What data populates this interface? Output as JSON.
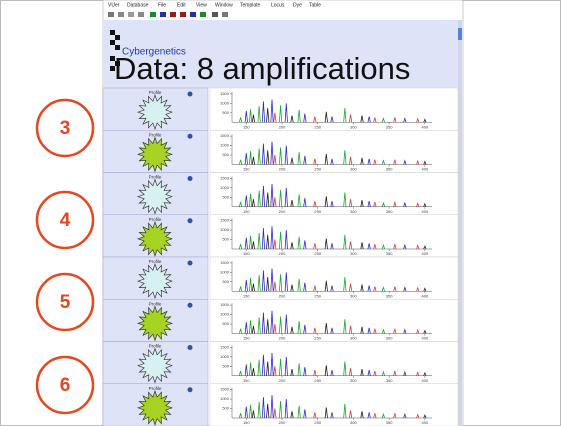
{
  "menu": [
    "VUer",
    "Database",
    "File",
    "Edit",
    "View",
    "Window",
    "Template",
    "Locus",
    "Dye",
    "Table"
  ],
  "header": {
    "logo": "Cybergenetics",
    "title": "Data: 8 amplifications"
  },
  "annotations": [
    "3",
    "4",
    "5",
    "6"
  ],
  "rows": [
    {
      "label": "Profile",
      "state": "pale"
    },
    {
      "label": "Profile",
      "state": "green"
    },
    {
      "label": "Profile",
      "state": "pale"
    },
    {
      "label": "Profile",
      "state": "green"
    },
    {
      "label": "Profile",
      "state": "pale"
    },
    {
      "label": "Profile",
      "state": "green"
    },
    {
      "label": "Profile",
      "state": "pale"
    },
    {
      "label": "Profile",
      "state": "green"
    }
  ],
  "trace_axis": {
    "xlim": [
      130,
      410
    ],
    "xticks": [
      150,
      200,
      250,
      300,
      350,
      400
    ],
    "ylim": [
      0,
      1600
    ],
    "yticks": [
      500,
      1000,
      1500
    ]
  },
  "dye_colors": {
    "blue": "#2b2bd6",
    "green": "#1fa82a",
    "black": "#222222",
    "red": "#e03a3a"
  },
  "peaks": [
    {
      "bp": 142,
      "rfu": 250,
      "dye": "green"
    },
    {
      "bp": 150,
      "rfu": 600,
      "dye": "blue"
    },
    {
      "bp": 156,
      "rfu": 700,
      "dye": "green"
    },
    {
      "bp": 160,
      "rfu": 400,
      "dye": "black"
    },
    {
      "bp": 168,
      "rfu": 850,
      "dye": "green"
    },
    {
      "bp": 174,
      "rfu": 1100,
      "dye": "blue"
    },
    {
      "bp": 180,
      "rfu": 750,
      "dye": "black"
    },
    {
      "bp": 186,
      "rfu": 1200,
      "dye": "blue"
    },
    {
      "bp": 190,
      "rfu": 500,
      "dye": "red"
    },
    {
      "bp": 198,
      "rfu": 900,
      "dye": "green"
    },
    {
      "bp": 206,
      "rfu": 1000,
      "dye": "blue"
    },
    {
      "bp": 214,
      "rfu": 350,
      "dye": "black"
    },
    {
      "bp": 224,
      "rfu": 650,
      "dye": "green"
    },
    {
      "bp": 232,
      "rfu": 450,
      "dye": "blue"
    },
    {
      "bp": 246,
      "rfu": 300,
      "dye": "red"
    },
    {
      "bp": 262,
      "rfu": 550,
      "dye": "black"
    },
    {
      "bp": 270,
      "rfu": 300,
      "dye": "blue"
    },
    {
      "bp": 288,
      "rfu": 750,
      "dye": "green"
    },
    {
      "bp": 296,
      "rfu": 400,
      "dye": "red"
    },
    {
      "bp": 312,
      "rfu": 350,
      "dye": "black"
    },
    {
      "bp": 322,
      "rfu": 300,
      "dye": "blue"
    },
    {
      "bp": 330,
      "rfu": 250,
      "dye": "red"
    },
    {
      "bp": 342,
      "rfu": 200,
      "dye": "green"
    },
    {
      "bp": 358,
      "rfu": 250,
      "dye": "red"
    },
    {
      "bp": 372,
      "rfu": 200,
      "dye": "blue"
    },
    {
      "bp": 390,
      "rfu": 180,
      "dye": "red"
    },
    {
      "bp": 400,
      "rfu": 150,
      "dye": "black"
    }
  ]
}
